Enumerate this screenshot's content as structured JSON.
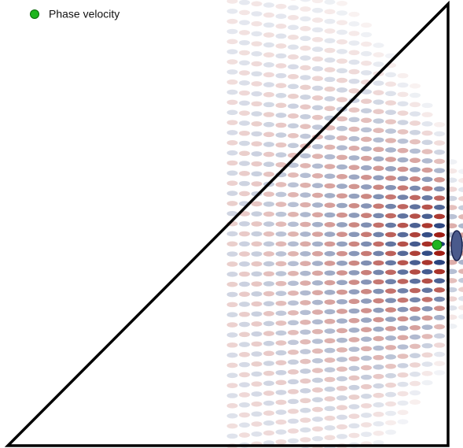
{
  "legend": {
    "label": "Phase velocity"
  }
}
